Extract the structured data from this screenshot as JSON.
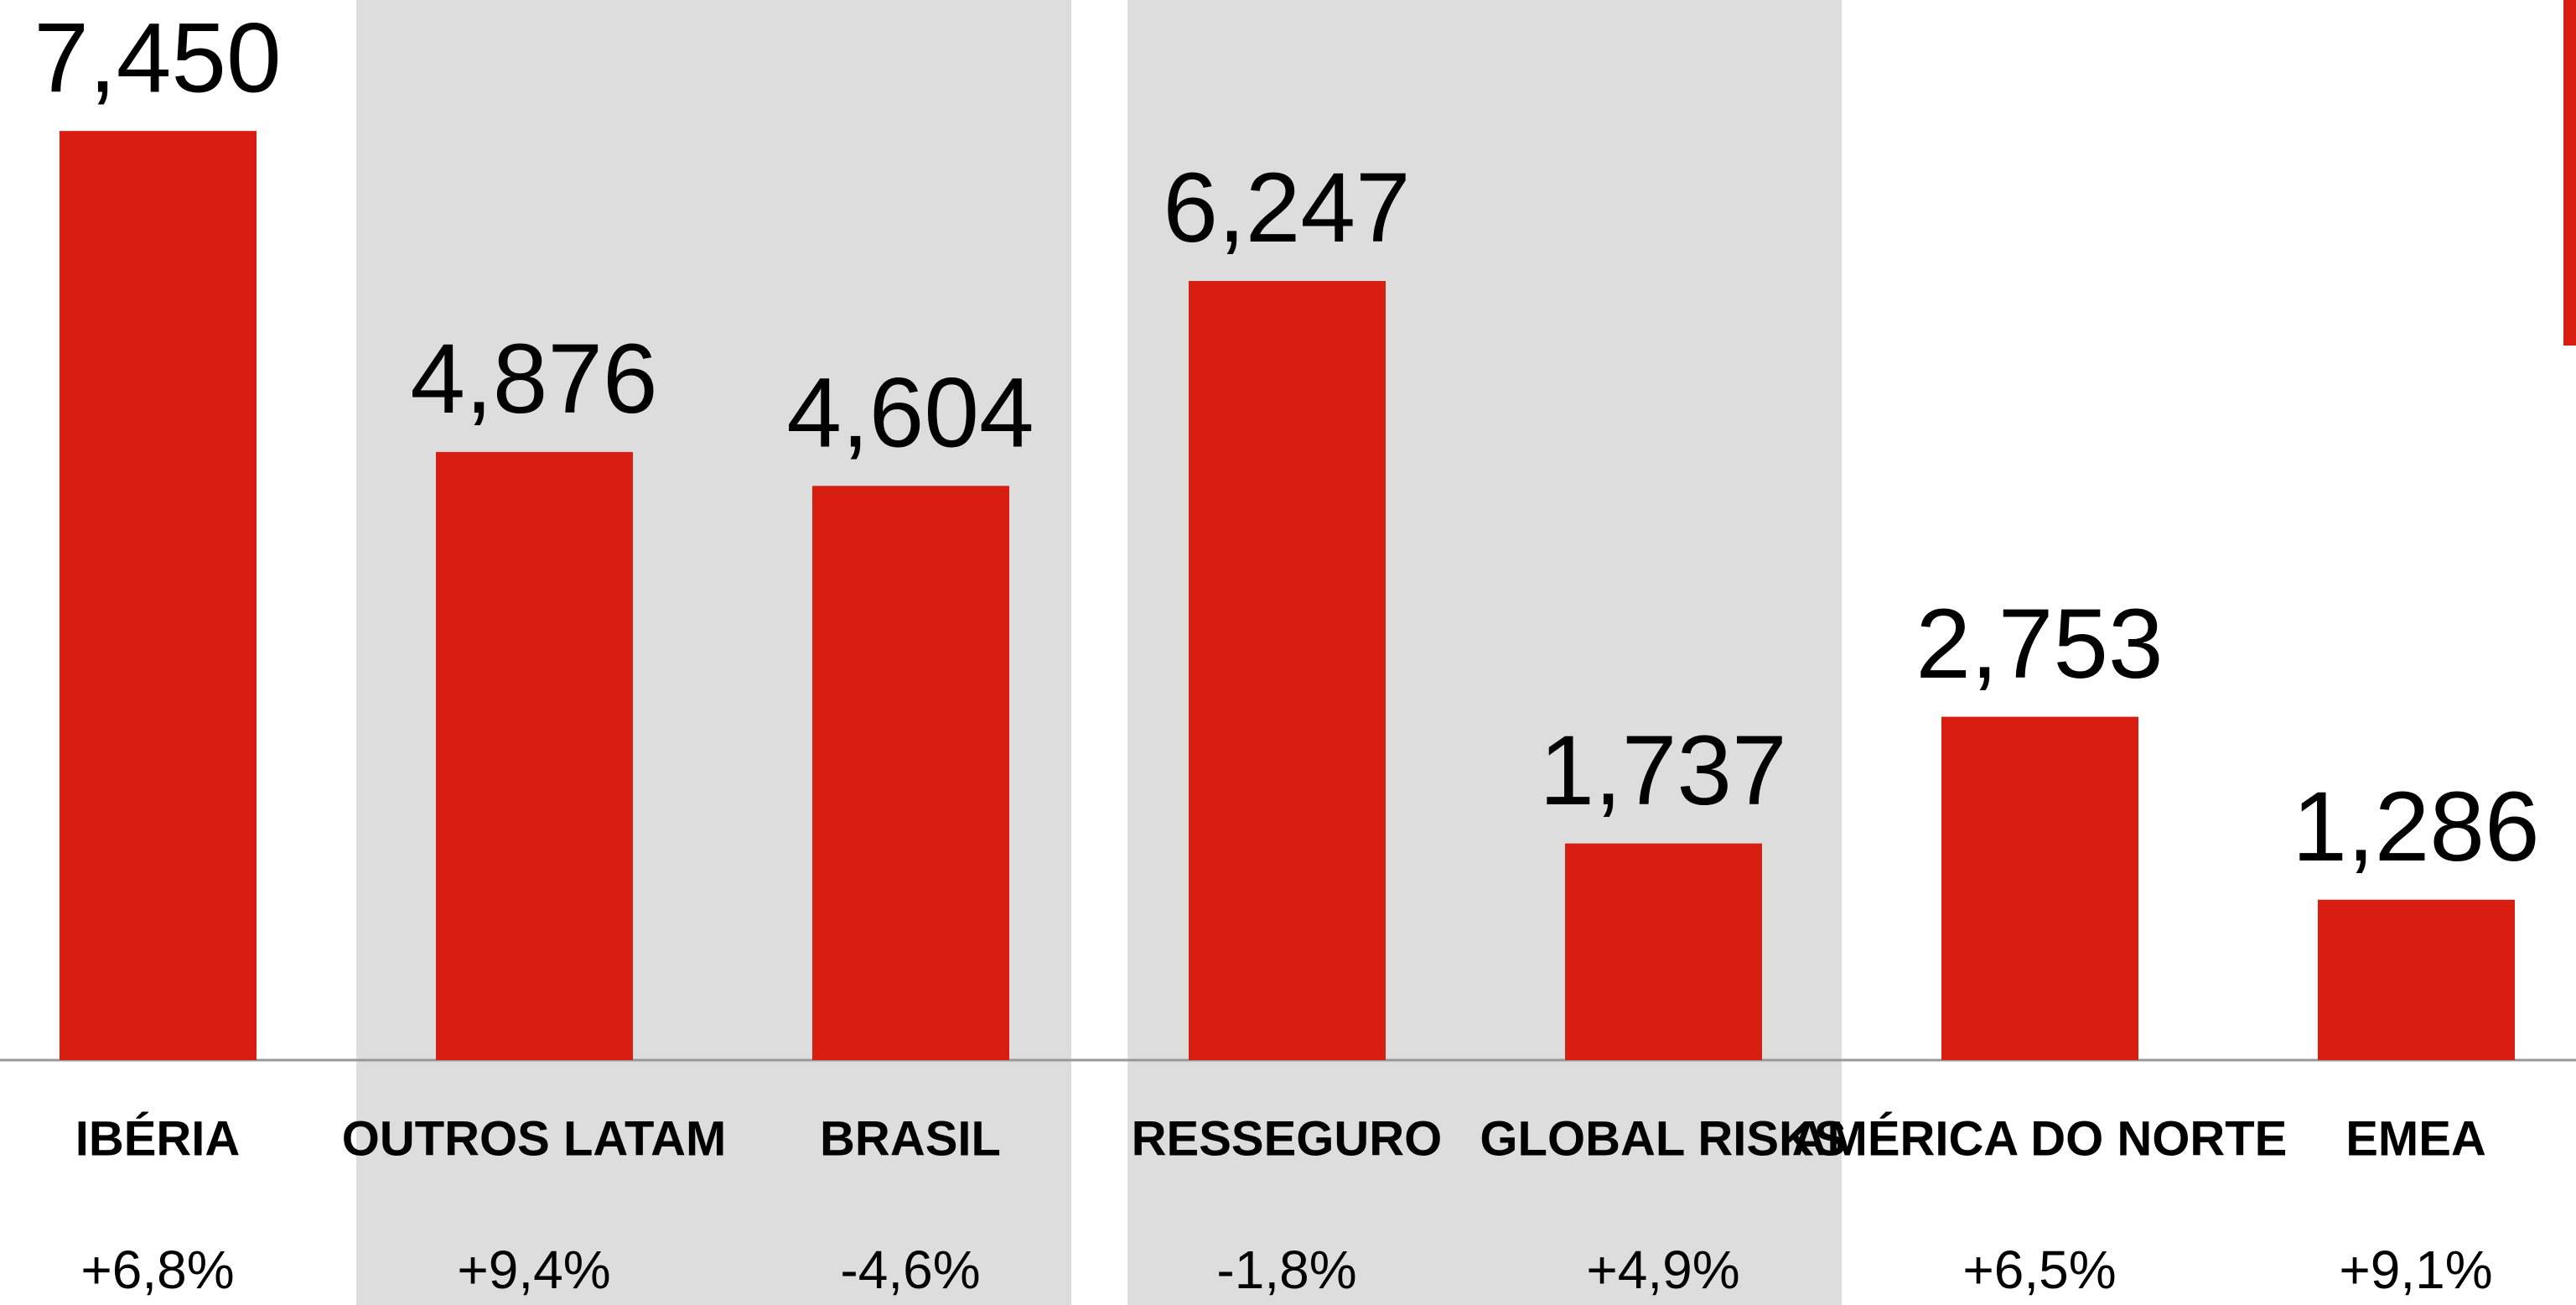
{
  "chart_data": {
    "type": "bar",
    "categories": [
      "IBÉRIA",
      "OUTROS LATAM",
      "BRASIL",
      "RESSEGURO",
      "GLOBAL RISKS",
      "AMÉRICA DO NORTE",
      "EMEA"
    ],
    "values": [
      7450,
      4876,
      4604,
      6247,
      1737,
      2753,
      1286
    ],
    "value_labels": [
      "7,450",
      "4,876",
      "4,604",
      "6,247",
      "1,737",
      "2,753",
      "1,286"
    ],
    "growth_labels": [
      "+6,8%",
      "+9,4%",
      "-4,6%",
      "-1,8%",
      "+4,9%",
      "+6,5%",
      "+9,1%"
    ],
    "color": "#d81e10",
    "ylim": [
      0,
      8500
    ]
  }
}
